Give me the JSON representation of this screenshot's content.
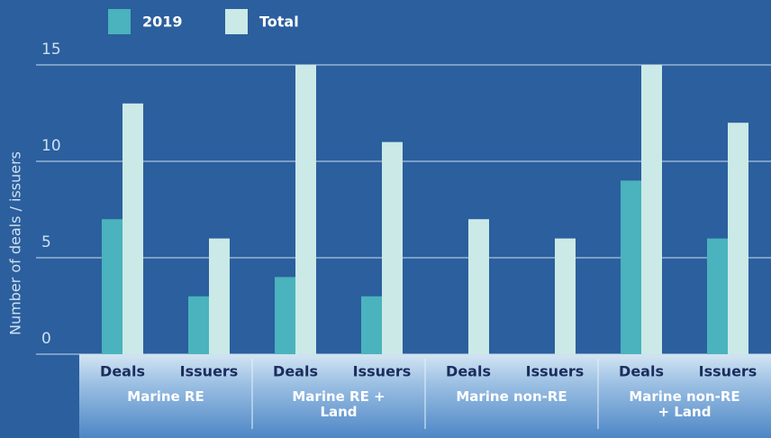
{
  "chart_data": {
    "type": "bar",
    "y_label": "Number of deals / issuers",
    "groups": [
      "Marine RE",
      "Marine RE + Land",
      "Marine non-RE",
      "Marine non-RE + Land"
    ],
    "categories": [
      "Deals",
      "Issuers",
      "Deals",
      "Issuers",
      "Deals",
      "Issuers",
      "Deals",
      "Issuers"
    ],
    "series": [
      {
        "name": "2019",
        "color": "#4ab3bd",
        "values": [
          7,
          3,
          4,
          3,
          0,
          0,
          9,
          6
        ]
      },
      {
        "name": "Total",
        "color": "#cbe9e6",
        "values": [
          13,
          6,
          15,
          11,
          7,
          6,
          15,
          12
        ]
      }
    ],
    "ylim": [
      0,
      15
    ],
    "yticks": [
      0,
      5,
      10,
      15
    ],
    "grid": true,
    "legend": "top"
  }
}
